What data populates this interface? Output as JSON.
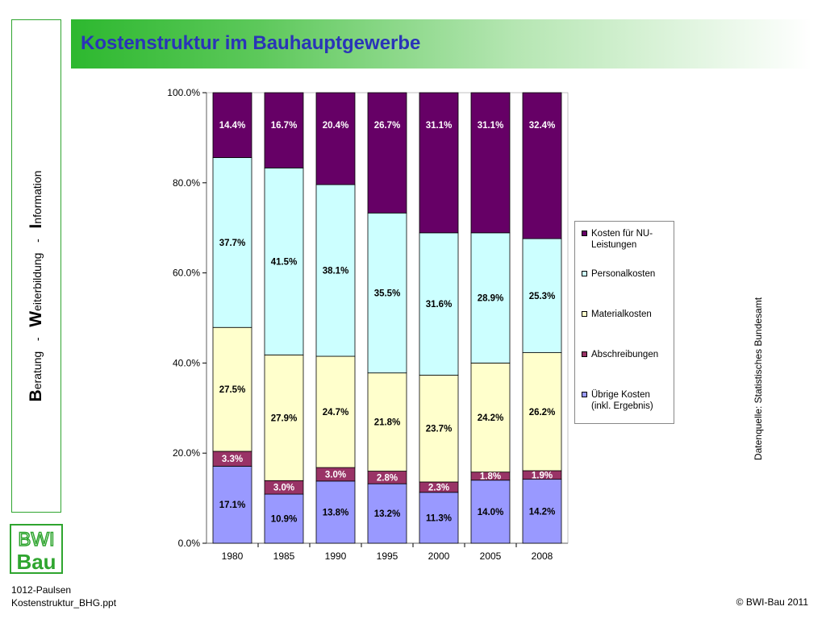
{
  "header": {
    "title": "Kostenstruktur im Bauhauptgewerbe"
  },
  "sidebar": {
    "word1_initial": "B",
    "word1_rest": "eratung",
    "sep1": "-",
    "word2_initial": "W",
    "word2_rest": "eiterbildung",
    "sep2": "-",
    "word3_initial": "I",
    "word3_rest": "nformation"
  },
  "logo": {
    "line1": "BWI",
    "line2": "Bau"
  },
  "footer": {
    "line1": "1012-Paulsen",
    "line2": "Kostenstruktur_BHG.ppt",
    "copyright": "© BWI-Bau 2011"
  },
  "source_note": "Datenquelle: Statistisches Bundesamt",
  "legend": [
    {
      "label": "Kosten für NU-Leistungen",
      "color": "#660066"
    },
    {
      "label": "Personalkosten",
      "color": "#ccffff"
    },
    {
      "label": "Materialkosten",
      "color": "#ffffcc"
    },
    {
      "label": "Abschreibungen",
      "color": "#993366"
    },
    {
      "label": "Übrige Kosten (inkl. Ergebnis)",
      "color": "#9999ff"
    }
  ],
  "chart_data": {
    "type": "bar",
    "stacked": true,
    "title": "",
    "xlabel": "",
    "ylabel": "",
    "ylim": [
      0,
      100
    ],
    "yticks": [
      "0.0%",
      "20.0%",
      "40.0%",
      "60.0%",
      "80.0%",
      "100.0%"
    ],
    "categories": [
      "1980",
      "1985",
      "1990",
      "1995",
      "2000",
      "2005",
      "2008"
    ],
    "series": [
      {
        "name": "Übrige Kosten (inkl. Ergebnis)",
        "color": "#9999ff",
        "label_color": "#000000",
        "values": [
          17.1,
          10.9,
          13.8,
          13.2,
          11.3,
          14.0,
          14.2
        ],
        "labels": [
          "17.1%",
          "10.9%",
          "13.8%",
          "13.2%",
          "11.3%",
          "14.0%",
          "14.2%"
        ]
      },
      {
        "name": "Abschreibungen",
        "color": "#993366",
        "label_color": "#ffffff",
        "values": [
          3.3,
          3.0,
          3.0,
          2.8,
          2.3,
          1.8,
          1.9
        ],
        "labels": [
          "3.3%",
          "3.0%",
          "3.0%",
          "2.8%",
          "2.3%",
          "1.8%",
          "1.9%"
        ]
      },
      {
        "name": "Materialkosten",
        "color": "#ffffcc",
        "label_color": "#000000",
        "values": [
          27.5,
          27.9,
          24.7,
          21.8,
          23.7,
          24.2,
          26.2
        ],
        "labels": [
          "27.5%",
          "27.9%",
          "24.7%",
          "21.8%",
          "23.7%",
          "24.2%",
          "26.2%"
        ]
      },
      {
        "name": "Personalkosten",
        "color": "#ccffff",
        "label_color": "#000000",
        "values": [
          37.7,
          41.5,
          38.1,
          35.5,
          31.6,
          28.9,
          25.3
        ],
        "labels": [
          "37.7%",
          "41.5%",
          "38.1%",
          "35.5%",
          "31.6%",
          "28.9%",
          "25.3%"
        ]
      },
      {
        "name": "Kosten für NU-Leistungen",
        "color": "#660066",
        "label_color": "#ffffff",
        "values": [
          14.4,
          16.7,
          20.4,
          26.7,
          31.1,
          31.1,
          32.4
        ],
        "labels": [
          "14.4%",
          "16.7%",
          "20.4%",
          "26.7%",
          "31.1%",
          "31.1%",
          "32.4%"
        ]
      }
    ],
    "legend_position": "right",
    "grid": false
  }
}
